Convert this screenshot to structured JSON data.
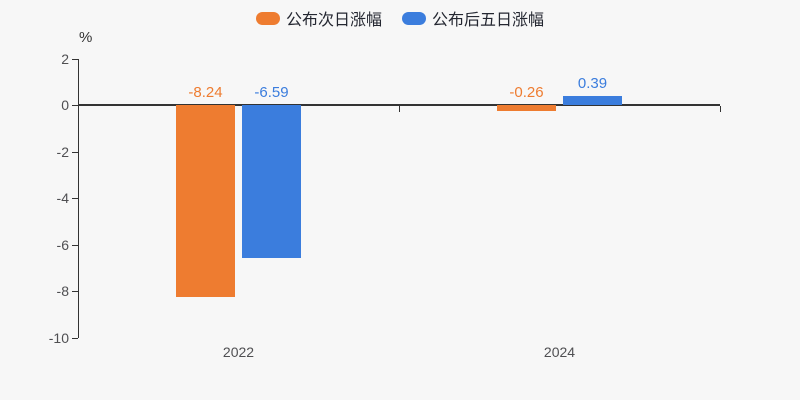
{
  "legend": {
    "items": [
      {
        "label": "公布次日涨幅",
        "color": "#ee7c30"
      },
      {
        "label": "公布后五日涨幅",
        "color": "#3b7ddd"
      }
    ]
  },
  "chart_data": {
    "type": "bar",
    "title": "",
    "unit_label": "%",
    "categories": [
      "2022",
      "2024"
    ],
    "series": [
      {
        "name": "公布次日涨幅",
        "color": "#ee7c30",
        "values": [
          -8.24,
          -0.26
        ]
      },
      {
        "name": "公布后五日涨幅",
        "color": "#3b7ddd",
        "values": [
          -6.59,
          0.39
        ]
      }
    ],
    "value_labels": [
      [
        "-8.24",
        "-0.26"
      ],
      [
        "-6.59",
        "0.39"
      ]
    ],
    "ylim": [
      -10,
      2
    ],
    "yticks": [
      2,
      0,
      -2,
      -4,
      -6,
      -8,
      -10
    ],
    "grid": false,
    "legend_position": "top",
    "axis_color": "#333333",
    "background_color": "#f7f7f7"
  }
}
